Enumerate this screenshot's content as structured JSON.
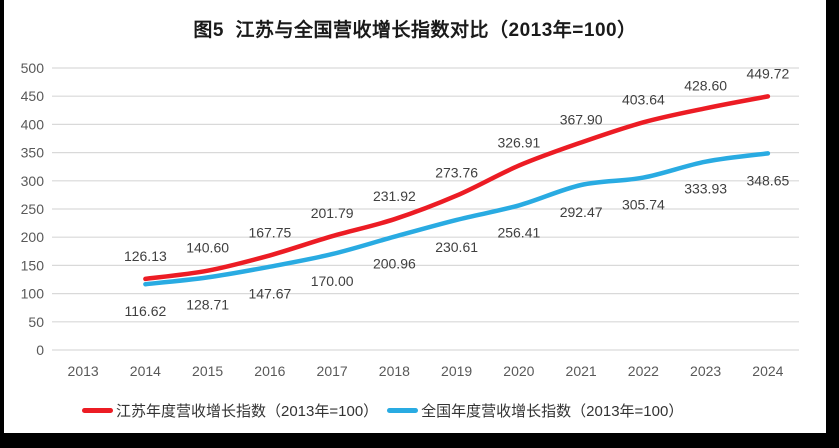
{
  "title": "图5  江苏与全国营收增长指数对比（2013年=100）",
  "chart_data": {
    "type": "line",
    "title": "图5 江苏与全国营收增长指数对比（2013年=100）",
    "categories": [
      "2013",
      "2014",
      "2015",
      "2016",
      "2017",
      "2018",
      "2019",
      "2020",
      "2021",
      "2022",
      "2023",
      "2024"
    ],
    "series": [
      {
        "name": "江苏年度营收增长指数（2013年=100）",
        "color": "#ec1c24",
        "label_position": "above",
        "values": [
          null,
          126.13,
          140.6,
          167.75,
          201.79,
          231.92,
          273.76,
          326.91,
          367.9,
          403.64,
          428.6,
          449.72
        ]
      },
      {
        "name": "全国年度营收增长指数（2013年=100）",
        "color": "#29abe2",
        "label_position": "below",
        "values": [
          null,
          116.62,
          128.71,
          147.67,
          170.0,
          200.96,
          230.61,
          256.41,
          292.47,
          305.74,
          333.93,
          348.65
        ]
      }
    ],
    "ylim": [
      0,
      500
    ],
    "ytick_step": 50,
    "grid": true,
    "smooth_lines": true,
    "legend_position": "bottom",
    "value_label_decimals": 2,
    "colors": {
      "grid_line": "#d9d9d9",
      "axis_text": "#595959",
      "data_label_text": "#404040",
      "frame_border": "#000000",
      "background": "#ffffff"
    }
  }
}
